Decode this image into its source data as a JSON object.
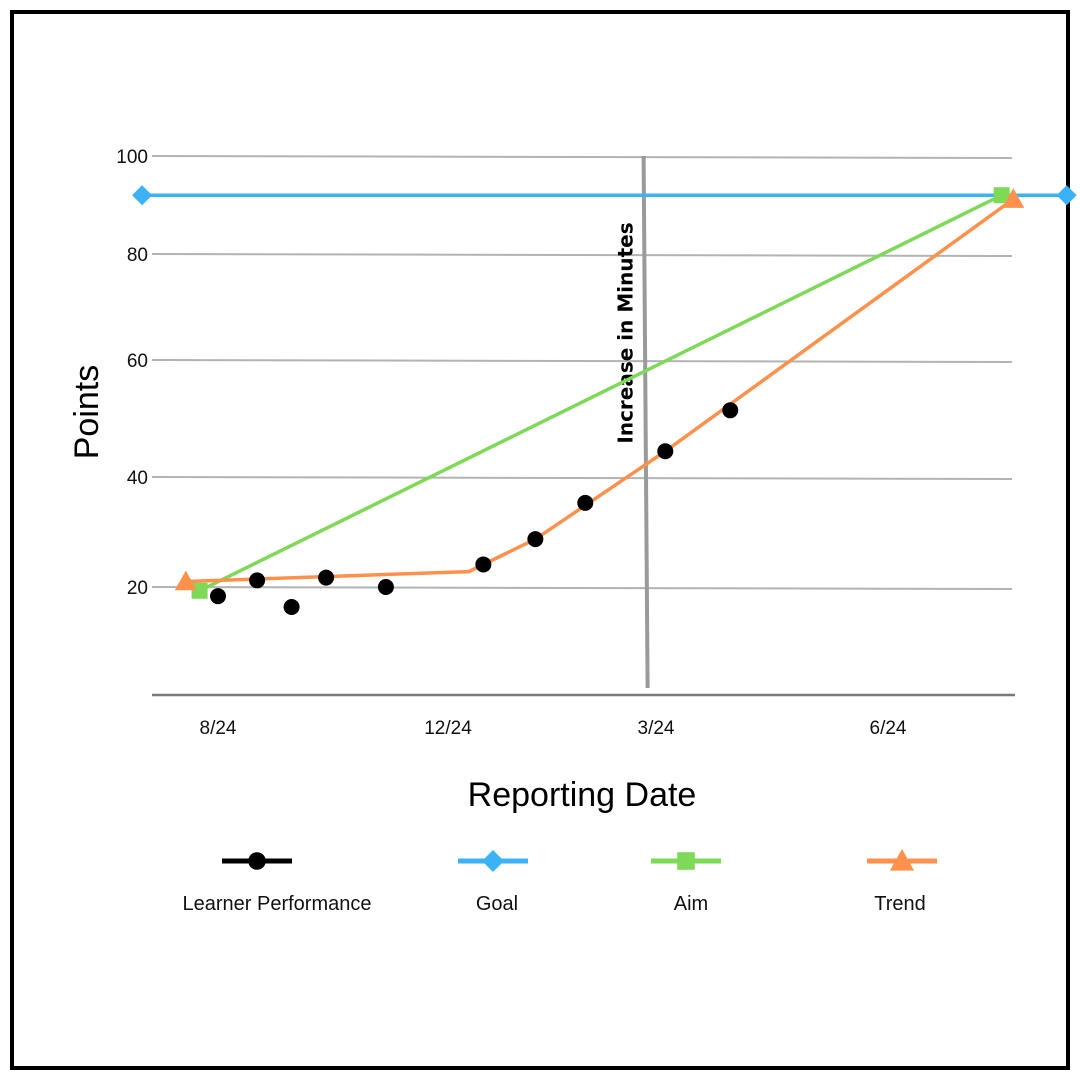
{
  "chart_data": {
    "type": "line",
    "title": "",
    "xlabel": "Reporting Date",
    "ylabel": "Points",
    "x_ticks": [
      "8/24",
      "12/24",
      "3/24",
      "6/24"
    ],
    "y_ticks": [
      20,
      40,
      60,
      80,
      100
    ],
    "ylim": [
      0,
      100
    ],
    "grid": true,
    "phase_change": {
      "label": "Increase in Minutes",
      "x": 1.95
    },
    "series": [
      {
        "name": "Learner Performance",
        "marker": "circle",
        "color": "#000000",
        "line": false,
        "points": [
          {
            "x": 0.0,
            "y": 18.3
          },
          {
            "x": 0.17,
            "y": 21.2
          },
          {
            "x": 0.32,
            "y": 16.3
          },
          {
            "x": 0.47,
            "y": 21.7
          },
          {
            "x": 0.73,
            "y": 20.0
          },
          {
            "x": 1.17,
            "y": 24.1
          },
          {
            "x": 1.42,
            "y": 28.7
          },
          {
            "x": 1.66,
            "y": 35.3
          },
          {
            "x": 2.04,
            "y": 44.4
          },
          {
            "x": 2.32,
            "y": 51.4
          }
        ]
      },
      {
        "name": "Goal",
        "marker": "diamond",
        "color": "#3bb2f5",
        "line": true,
        "points": [
          {
            "x": -0.33,
            "y": 92
          },
          {
            "x": 3.77,
            "y": 92
          }
        ]
      },
      {
        "name": "Aim",
        "marker": "square",
        "color": "#7ed957",
        "line": true,
        "points": [
          {
            "x": -0.08,
            "y": 19.3
          },
          {
            "x": 3.49,
            "y": 92
          }
        ]
      },
      {
        "name": "Trend",
        "marker": "triangle",
        "color": "#ff914d",
        "line": true,
        "points": [
          {
            "x": -0.14,
            "y": 21
          },
          {
            "x": 1.1,
            "y": 22.8
          },
          {
            "x": 1.42,
            "y": 28.7
          },
          {
            "x": 2.04,
            "y": 44.4
          },
          {
            "x": 3.54,
            "y": 91.2
          }
        ]
      }
    ],
    "legend": {
      "placement": "bottom",
      "entries": [
        "Learner Performance",
        "Goal",
        "Aim",
        "Trend"
      ]
    }
  }
}
